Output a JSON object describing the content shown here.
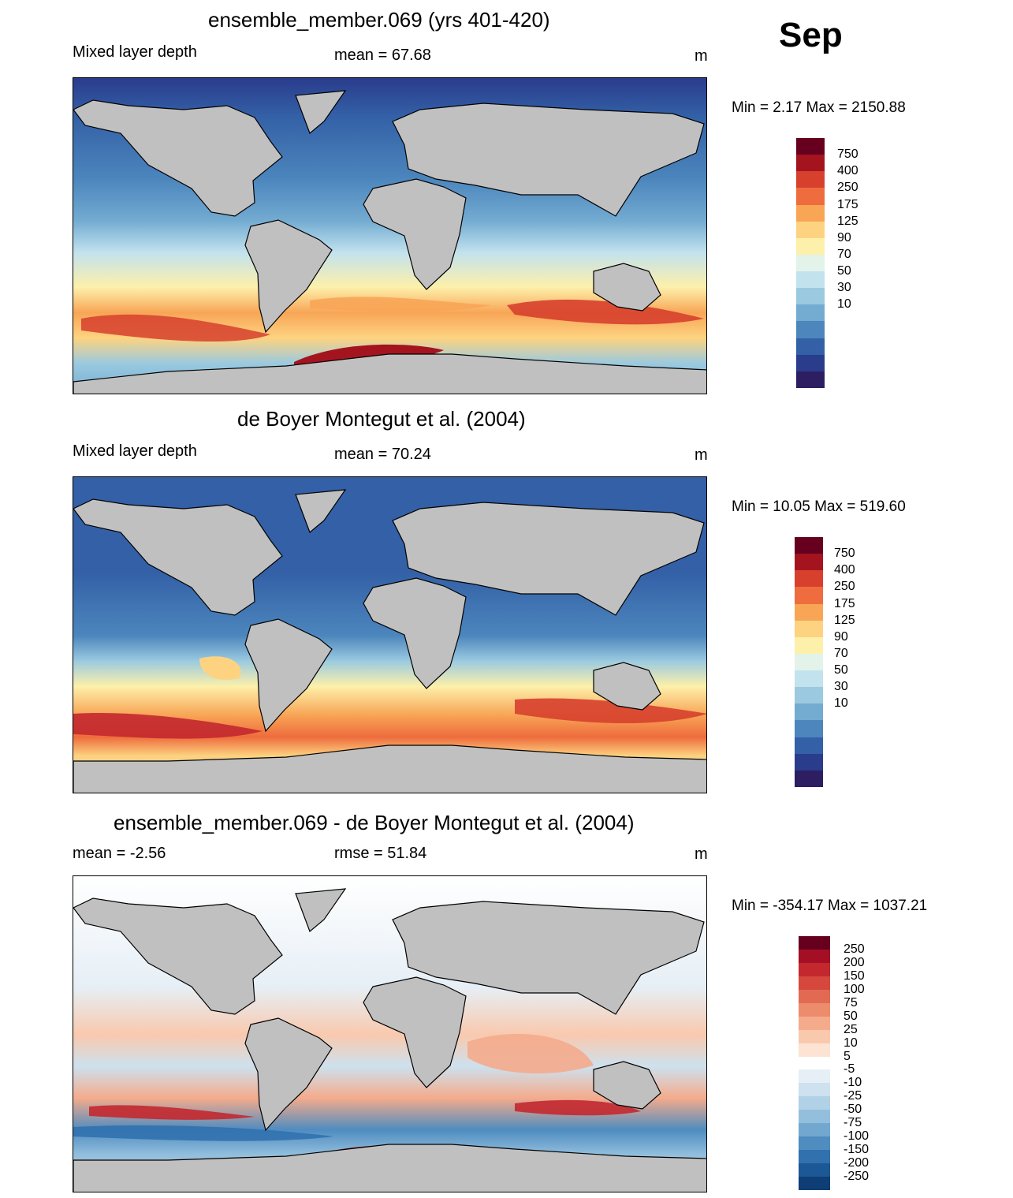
{
  "month_label": "Sep",
  "panels": [
    {
      "title": "ensemble_member.069 (yrs 401-420)",
      "left_label": "Mixed layer depth",
      "center_label": "mean =  67.68",
      "units": "m",
      "minmax": "Min =   2.17 Max = 2150.88",
      "colorbar": {
        "labels": [
          "750",
          "400",
          "250",
          "175",
          "125",
          "90",
          "70",
          "50",
          "30",
          "10"
        ],
        "colors": [
          "#67001f",
          "#a3141f",
          "#d6402d",
          "#ee6c3d",
          "#f8a556",
          "#fdd381",
          "#fdf0aa",
          "#e3f3ea",
          "#c2e2ee",
          "#9bcae0",
          "#73abd1",
          "#4c86bd",
          "#3360a6",
          "#2a3c8c",
          "#2d1e62"
        ]
      }
    },
    {
      "title": "de Boyer Montegut et al. (2004)",
      "left_label": "Mixed layer depth",
      "center_label": "mean =  70.24",
      "units": "m",
      "minmax": "Min =  10.05 Max = 519.60",
      "colorbar": {
        "labels": [
          "750",
          "400",
          "250",
          "175",
          "125",
          "90",
          "70",
          "50",
          "30",
          "10"
        ],
        "colors": [
          "#67001f",
          "#a3141f",
          "#d6402d",
          "#ee6c3d",
          "#f8a556",
          "#fdd381",
          "#fdf0aa",
          "#e3f3ea",
          "#c2e2ee",
          "#9bcae0",
          "#73abd1",
          "#4c86bd",
          "#3360a6",
          "#2a3c8c",
          "#2d1e62"
        ]
      }
    },
    {
      "title": "ensemble_member.069 - de Boyer Montegut et al. (2004)",
      "left_label": "mean =  -2.56",
      "center_label": "rmse =  51.84",
      "units": "m",
      "minmax": "Min = -354.17 Max = 1037.21",
      "colorbar": {
        "labels": [
          "250",
          "200",
          "150",
          "100",
          "75",
          "50",
          "25",
          "10",
          "5",
          "-5",
          "-10",
          "-25",
          "-50",
          "-75",
          "-100",
          "-150",
          "-200",
          "-250"
        ],
        "colors": [
          "#67001f",
          "#a50f26",
          "#c3282f",
          "#d6483d",
          "#e26a52",
          "#ec8c6c",
          "#f4ab8c",
          "#f9c9ae",
          "#fde3d3",
          "#ffffff",
          "#e6eff6",
          "#cde1ee",
          "#b1d1e6",
          "#93bfdd",
          "#72a8cf",
          "#4f8cc0",
          "#3171ae",
          "#1c5796",
          "#0e3e75"
        ]
      }
    }
  ]
}
